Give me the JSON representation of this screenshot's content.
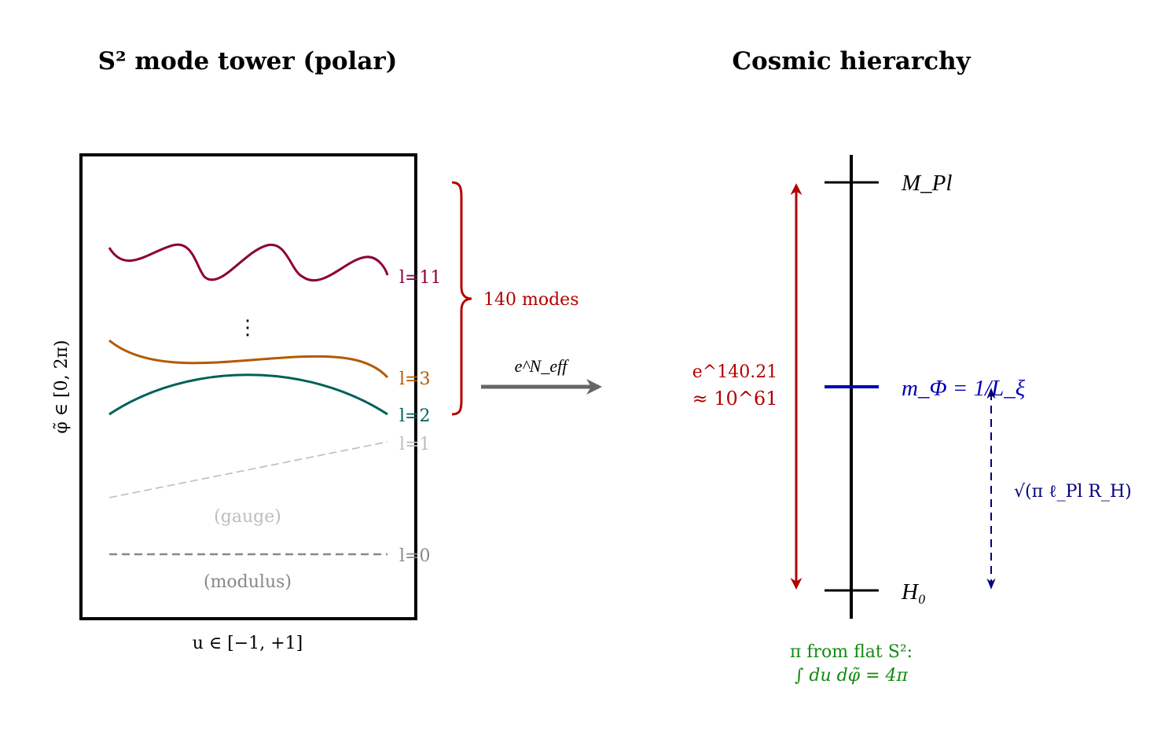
{
  "colors": {
    "l11": "#8b0038",
    "l3": "#b35a00",
    "l2": "#00605a",
    "l1": "#bdbdbd",
    "l0": "#888888",
    "red": "#b30000",
    "blue": "#0000b3",
    "navy": "#000080",
    "green": "#138a13",
    "arrow": "#666666"
  },
  "left": {
    "title": "S² mode tower (polar)",
    "y_label": "φ̃ ∈ [0, 2π)",
    "x_label": "u ∈ [−1, +1]",
    "modes": [
      {
        "label": "l=11"
      },
      {
        "label": "l=3"
      },
      {
        "label": "l=2"
      },
      {
        "label": "l=1",
        "note": "(gauge)"
      },
      {
        "label": "l=0",
        "note": "(modulus)"
      }
    ],
    "ellipsis": "⋮",
    "brace_label": "140 modes",
    "arrow_label": "e^N_eff"
  },
  "right": {
    "title": "Cosmic hierarchy",
    "levels": [
      {
        "label": "M_Pl"
      },
      {
        "label": "m_Φ = 1/L_ξ"
      },
      {
        "label": "H₀"
      }
    ],
    "ratio_line1": "e^140.21",
    "ratio_line2": "≈ 10^61",
    "sqrt_label": "√(π ℓ_Pl R_H)",
    "footnote_line1": "π from flat S²:",
    "footnote_line2": "∫ du dφ̃ = 4π"
  }
}
